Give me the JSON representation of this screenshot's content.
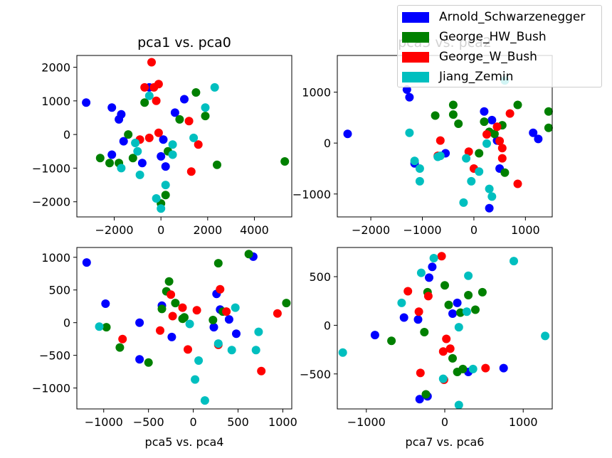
{
  "colors": {
    "Arnold_Schwarzenegger": "#0000ff",
    "George_HW_Bush": "#008000",
    "George_W_Bush": "#ff0000",
    "Jiang_Zemin": "#00bfbf"
  },
  "legend": {
    "placement": "top-right",
    "entries": [
      {
        "label": "Arnold_Schwarzenegger",
        "color": "#0000ff"
      },
      {
        "label": "George_HW_Bush",
        "color": "#008000"
      },
      {
        "label": "George_W_Bush",
        "color": "#ff0000"
      },
      {
        "label": "Jiang_Zemin",
        "color": "#00bfbf"
      }
    ]
  },
  "chart_data": [
    {
      "type": "scatter",
      "title": "pca1 vs. pca0",
      "xlabel": "",
      "xlim": [
        -3600,
        5600
      ],
      "ylim": [
        -2450,
        2350
      ],
      "xticks": [
        -2000,
        0,
        2000,
        4000
      ],
      "xtick_labels": [
        "−2000",
        "0",
        "2000",
        "4000"
      ],
      "yticks": [
        -2000,
        -1000,
        0,
        1000,
        2000
      ],
      "ytick_labels": [
        "−2000",
        "−1000",
        "0",
        "1000",
        "2000"
      ],
      "series": [
        {
          "name": "Arnold_Schwarzenegger",
          "points": [
            [
              -3200,
              950
            ],
            [
              -2100,
              800
            ],
            [
              -1700,
              600
            ],
            [
              -1800,
              450
            ],
            [
              -2100,
              -600
            ],
            [
              -800,
              -850
            ],
            [
              -500,
              1400
            ],
            [
              100,
              -150
            ],
            [
              0,
              -650
            ],
            [
              200,
              -950
            ],
            [
              600,
              650
            ],
            [
              1000,
              1050
            ],
            [
              -1600,
              -200
            ]
          ]
        },
        {
          "name": "George_HW_Bush",
          "points": [
            [
              -2600,
              -700
            ],
            [
              -2200,
              -850
            ],
            [
              -1400,
              0
            ],
            [
              -1200,
              -700
            ],
            [
              -1800,
              -850
            ],
            [
              -700,
              950
            ],
            [
              300,
              -500
            ],
            [
              800,
              450
            ],
            [
              1500,
              1250
            ],
            [
              1900,
              550
            ],
            [
              2400,
              -900
            ],
            [
              5300,
              -800
            ],
            [
              200,
              -1800
            ],
            [
              0,
              -2050
            ]
          ]
        },
        {
          "name": "George_W_Bush",
          "points": [
            [
              -400,
              2150
            ],
            [
              -700,
              1400
            ],
            [
              -300,
              1400
            ],
            [
              -100,
              1500
            ],
            [
              -200,
              1000
            ],
            [
              -900,
              -150
            ],
            [
              -500,
              -100
            ],
            [
              -100,
              50
            ],
            [
              1200,
              400
            ],
            [
              1600,
              -300
            ],
            [
              1300,
              -1100
            ]
          ]
        },
        {
          "name": "Jiang_Zemin",
          "points": [
            [
              -1700,
              -1000
            ],
            [
              -900,
              -1200
            ],
            [
              -1000,
              -500
            ],
            [
              -500,
              1150
            ],
            [
              200,
              -1500
            ],
            [
              -200,
              -1900
            ],
            [
              0,
              -2200
            ],
            [
              500,
              -300
            ],
            [
              500,
              -600
            ],
            [
              1400,
              -100
            ],
            [
              1900,
              800
            ],
            [
              2300,
              1400
            ],
            [
              -1100,
              -250
            ]
          ]
        }
      ]
    },
    {
      "type": "scatter",
      "title": "pca3 vs. pca2",
      "xlabel": "",
      "xlim": [
        -2650,
        1520
      ],
      "ylim": [
        -1450,
        1720
      ],
      "xticks": [
        -2000,
        -1000,
        0,
        1000
      ],
      "xtick_labels": [
        "−2000",
        "−1000",
        "0",
        "1000"
      ],
      "yticks": [
        -1000,
        0,
        1000
      ],
      "ytick_labels": [
        "−1000",
        "0",
        "1000"
      ],
      "series": [
        {
          "name": "Arnold_Schwarzenegger",
          "points": [
            [
              -2450,
              180
            ],
            [
              -1300,
              1050
            ],
            [
              -1250,
              900
            ],
            [
              -1150,
              -400
            ],
            [
              -550,
              -200
            ],
            [
              200,
              620
            ],
            [
              350,
              450
            ],
            [
              450,
              50
            ],
            [
              500,
              -500
            ],
            [
              1150,
              200
            ],
            [
              1250,
              80
            ],
            [
              300,
              -1280
            ]
          ]
        },
        {
          "name": "George_HW_Bush",
          "points": [
            [
              -750,
              540
            ],
            [
              -400,
              750
            ],
            [
              -400,
              560
            ],
            [
              -300,
              380
            ],
            [
              100,
              -200
            ],
            [
              200,
              420
            ],
            [
              300,
              220
            ],
            [
              400,
              180
            ],
            [
              600,
              -580
            ],
            [
              850,
              750
            ],
            [
              1450,
              620
            ],
            [
              1450,
              300
            ],
            [
              550,
              350
            ]
          ]
        },
        {
          "name": "George_W_Bush",
          "points": [
            [
              -650,
              50
            ],
            [
              -700,
              -250
            ],
            [
              -100,
              -170
            ],
            [
              0,
              -500
            ],
            [
              250,
              170
            ],
            [
              450,
              320
            ],
            [
              500,
              40
            ],
            [
              550,
              -100
            ],
            [
              550,
              -300
            ],
            [
              700,
              580
            ],
            [
              850,
              -800
            ]
          ]
        },
        {
          "name": "Jiang_Zemin",
          "points": [
            [
              -1250,
              200
            ],
            [
              -1150,
              -350
            ],
            [
              -1050,
              -500
            ],
            [
              -1050,
              -750
            ],
            [
              -650,
              -250
            ],
            [
              -150,
              -300
            ],
            [
              -50,
              -750
            ],
            [
              100,
              -560
            ],
            [
              250,
              -10
            ],
            [
              300,
              -900
            ],
            [
              350,
              -1050
            ],
            [
              -200,
              -1170
            ],
            [
              600,
              1230
            ],
            [
              -700,
              -270
            ]
          ]
        }
      ]
    },
    {
      "type": "scatter",
      "title": "",
      "xlabel": "pca5 vs. pca4",
      "xlim": [
        -1300,
        1100
      ],
      "ylim": [
        -1320,
        1150
      ],
      "xticks": [
        -1000,
        -500,
        0,
        500,
        1000
      ],
      "xtick_labels": [
        "−1000",
        "−500",
        "0",
        "500",
        "1000"
      ],
      "yticks": [
        -1000,
        -500,
        0,
        500,
        1000
      ],
      "ytick_labels": [
        "−1000",
        "−500",
        "0",
        "500",
        "1000"
      ],
      "series": [
        {
          "name": "Arnold_Schwarzenegger",
          "points": [
            [
              -1190,
              920
            ],
            [
              -980,
              290
            ],
            [
              -600,
              0
            ],
            [
              -600,
              -560
            ],
            [
              -350,
              260
            ],
            [
              -240,
              -220
            ],
            [
              230,
              -70
            ],
            [
              260,
              440
            ],
            [
              300,
              200
            ],
            [
              400,
              50
            ],
            [
              480,
              -170
            ],
            [
              670,
              1010
            ]
          ]
        },
        {
          "name": "George_HW_Bush",
          "points": [
            [
              -970,
              -70
            ],
            [
              -820,
              -380
            ],
            [
              -500,
              -610
            ],
            [
              -350,
              210
            ],
            [
              -300,
              480
            ],
            [
              -270,
              630
            ],
            [
              -200,
              300
            ],
            [
              -120,
              60
            ],
            [
              -100,
              80
            ],
            [
              220,
              40
            ],
            [
              280,
              910
            ],
            [
              330,
              170
            ],
            [
              620,
              1050
            ],
            [
              1040,
              300
            ]
          ]
        },
        {
          "name": "George_W_Bush",
          "points": [
            [
              -790,
              -250
            ],
            [
              -370,
              -120
            ],
            [
              -250,
              430
            ],
            [
              -230,
              100
            ],
            [
              -120,
              230
            ],
            [
              -60,
              -410
            ],
            [
              40,
              190
            ],
            [
              300,
              510
            ],
            [
              280,
              -340
            ],
            [
              370,
              170
            ],
            [
              760,
              -740
            ],
            [
              940,
              140
            ]
          ]
        },
        {
          "name": "Jiang_Zemin",
          "points": [
            [
              -1050,
              -60
            ],
            [
              -40,
              -20
            ],
            [
              60,
              -580
            ],
            [
              20,
              -870
            ],
            [
              130,
              -1190
            ],
            [
              280,
              -320
            ],
            [
              430,
              -420
            ],
            [
              470,
              230
            ],
            [
              700,
              -420
            ],
            [
              730,
              -140
            ]
          ]
        }
      ]
    },
    {
      "type": "scatter",
      "title": "",
      "xlabel": "pca7 vs. pca6",
      "xlim": [
        -1370,
        1370
      ],
      "ylim": [
        -860,
        800
      ],
      "xticks": [
        -1000,
        0,
        1000
      ],
      "xtick_labels": [
        "−1000",
        "0",
        "1000"
      ],
      "yticks": [
        -500,
        0,
        500
      ],
      "ytick_labels": [
        "−500",
        "0",
        "500"
      ],
      "series": [
        {
          "name": "Arnold_Schwarzenegger",
          "points": [
            [
              -890,
              -100
            ],
            [
              -520,
              80
            ],
            [
              -340,
              60
            ],
            [
              -320,
              -760
            ],
            [
              -220,
              -730
            ],
            [
              -200,
              490
            ],
            [
              -160,
              600
            ],
            [
              100,
              120
            ],
            [
              160,
              230
            ],
            [
              300,
              -480
            ],
            [
              750,
              -440
            ]
          ]
        },
        {
          "name": "George_HW_Bush",
          "points": [
            [
              -680,
              -160
            ],
            [
              -260,
              -70
            ],
            [
              -240,
              -710
            ],
            [
              -220,
              340
            ],
            [
              0,
              410
            ],
            [
              50,
              210
            ],
            [
              100,
              -340
            ],
            [
              160,
              -480
            ],
            [
              200,
              130
            ],
            [
              300,
              310
            ],
            [
              390,
              160
            ],
            [
              480,
              340
            ],
            [
              230,
              -450
            ]
          ]
        },
        {
          "name": "George_W_Bush",
          "points": [
            [
              -470,
              350
            ],
            [
              -330,
              140
            ],
            [
              -310,
              -490
            ],
            [
              -210,
              300
            ],
            [
              -40,
              710
            ],
            [
              -20,
              -270
            ],
            [
              20,
              -140
            ],
            [
              70,
              -240
            ],
            [
              -10,
              -560
            ],
            [
              520,
              -440
            ]
          ]
        },
        {
          "name": "Jiang_Zemin",
          "points": [
            [
              -1300,
              -280
            ],
            [
              -550,
              230
            ],
            [
              -300,
              540
            ],
            [
              -140,
              690
            ],
            [
              -20,
              -550
            ],
            [
              180,
              -20
            ],
            [
              180,
              -820
            ],
            [
              280,
              140
            ],
            [
              300,
              510
            ],
            [
              360,
              -450
            ],
            [
              880,
              660
            ],
            [
              1280,
              -110
            ]
          ]
        }
      ]
    }
  ]
}
